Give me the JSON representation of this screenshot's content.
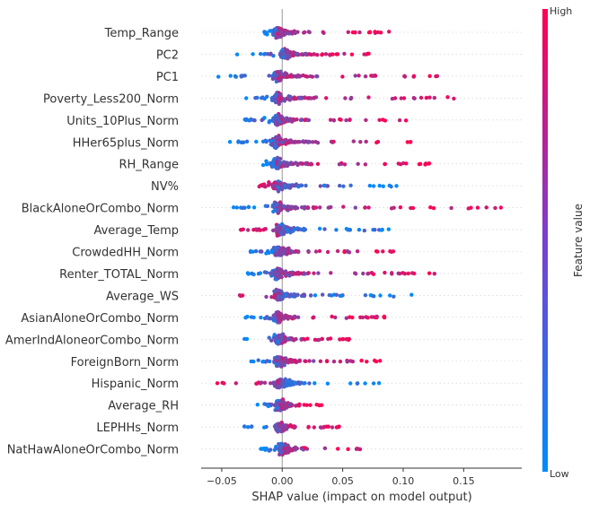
{
  "chart_data": {
    "type": "scatter",
    "subtype": "shap-beeswarm-summary",
    "xlabel": "SHAP value (impact on model output)",
    "colorbar": {
      "label": "Feature value",
      "high": "High",
      "low": "Low",
      "low_color": "#008bfb",
      "high_color": "#ff0052"
    },
    "xticks": [
      -0.05,
      0,
      0.05,
      0.1,
      0.15
    ],
    "xtick_labels": [
      "−0.05",
      "0.00",
      "0.05",
      "0.10",
      "0.15"
    ],
    "xlim": [
      -0.067,
      0.198
    ],
    "grid": false,
    "features": [
      {
        "name": "Temp_Range",
        "min": -0.015,
        "max": 0.09,
        "peak": -0.004,
        "low_side": "negative"
      },
      {
        "name": "PC2",
        "min": -0.04,
        "max": 0.075,
        "peak": 0.002,
        "low_side": "negative"
      },
      {
        "name": "PC1",
        "min": -0.055,
        "max": 0.13,
        "peak": -0.004,
        "low_side": "negative"
      },
      {
        "name": "Poverty_Less200_Norm",
        "min": -0.04,
        "max": 0.145,
        "peak": -0.004,
        "low_side": "negative"
      },
      {
        "name": "Units_10Plus_Norm",
        "min": -0.032,
        "max": 0.103,
        "peak": -0.004,
        "low_side": "negative"
      },
      {
        "name": "HHer65plus_Norm",
        "min": -0.045,
        "max": 0.112,
        "peak": -0.004,
        "low_side": "negative"
      },
      {
        "name": "RH_Range",
        "min": -0.018,
        "max": 0.13,
        "peak": -0.004,
        "low_side": "negative"
      },
      {
        "name": "NV%",
        "min": -0.02,
        "max": 0.095,
        "peak": -0.004,
        "low_side": "positive"
      },
      {
        "name": "BlackAloneOrCombo_Norm",
        "min": -0.045,
        "max": 0.185,
        "peak": -0.004,
        "low_side": "negative"
      },
      {
        "name": "Average_Temp",
        "min": -0.038,
        "max": 0.097,
        "peak": -0.002,
        "low_side": "positive"
      },
      {
        "name": "CrowdedHH_Norm",
        "min": -0.03,
        "max": 0.092,
        "peak": -0.003,
        "low_side": "negative"
      },
      {
        "name": "Renter_TOTAL_Norm",
        "min": -0.033,
        "max": 0.135,
        "peak": -0.004,
        "low_side": "negative"
      },
      {
        "name": "Average_WS",
        "min": -0.04,
        "max": 0.107,
        "peak": -0.003,
        "low_side": "positive"
      },
      {
        "name": "AsianAloneOrCombo_Norm",
        "min": -0.032,
        "max": 0.085,
        "peak": -0.004,
        "low_side": "negative"
      },
      {
        "name": "AmerIndAloneorCombo_Norm",
        "min": -0.042,
        "max": 0.058,
        "peak": -0.003,
        "low_side": "negative"
      },
      {
        "name": "ForeignBorn_Norm",
        "min": -0.037,
        "max": 0.085,
        "peak": -0.003,
        "low_side": "negative"
      },
      {
        "name": "Hispanic_Norm",
        "min": -0.055,
        "max": 0.083,
        "peak": -0.002,
        "low_side": "positive"
      },
      {
        "name": "Average_RH",
        "min": -0.022,
        "max": 0.033,
        "peak": -0.002,
        "low_side": "negative"
      },
      {
        "name": "LEPHHs_Norm",
        "min": -0.035,
        "max": 0.05,
        "peak": -0.002,
        "low_side": "negative"
      },
      {
        "name": "NatHawAloneOrCombo_Norm",
        "min": -0.018,
        "max": 0.067,
        "peak": 0.0,
        "low_side": "negative"
      }
    ]
  }
}
